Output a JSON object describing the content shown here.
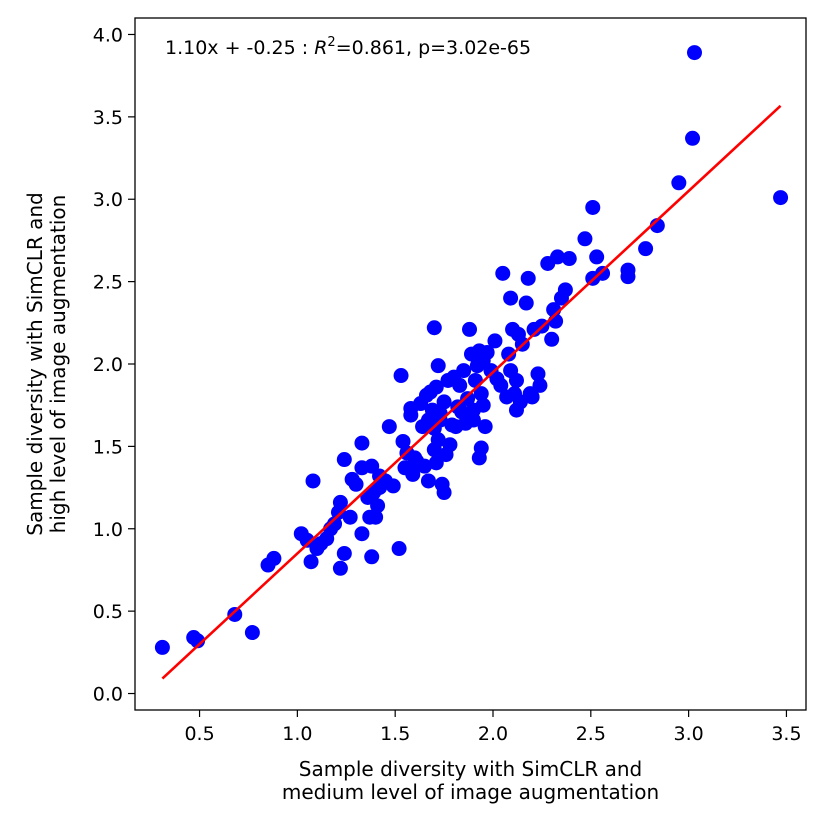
{
  "chart_data": {
    "type": "scatter",
    "title": "",
    "xlabel": [
      "Sample diversity with SimCLR and",
      "medium level of image augmentation"
    ],
    "ylabel": [
      "Sample diversity with SimCLR and",
      "high level of image augmentation"
    ],
    "xlim": [
      0.17,
      3.6
    ],
    "ylim": [
      -0.1,
      4.1
    ],
    "xticks": [
      0.5,
      1.0,
      1.5,
      2.0,
      2.5,
      3.0,
      3.5
    ],
    "xtick_labels": [
      "0.5",
      "1.0",
      "1.5",
      "2.0",
      "2.5",
      "3.0",
      "3.5"
    ],
    "yticks": [
      0.0,
      0.5,
      1.0,
      1.5,
      2.0,
      2.5,
      3.0,
      3.5,
      4.0
    ],
    "ytick_labels": [
      "0.0",
      "0.5",
      "1.0",
      "1.5",
      "2.0",
      "2.5",
      "3.0",
      "3.5",
      "4.0"
    ],
    "grid": false,
    "annotation": {
      "prefix": "1.10x + -0.25 : ",
      "r": "R",
      "sup": "2",
      "suffix": "=0.861, p=3.02e-65"
    },
    "fit_line": {
      "slope": 1.1,
      "intercept": -0.25,
      "x_start": 0.31,
      "x_end": 3.47,
      "color": "#ff0000"
    },
    "series": [
      {
        "color": "#0000ff",
        "points": [
          [
            0.31,
            0.28
          ],
          [
            0.47,
            0.34
          ],
          [
            0.49,
            0.32
          ],
          [
            0.68,
            0.48
          ],
          [
            0.77,
            0.37
          ],
          [
            0.85,
            0.78
          ],
          [
            0.88,
            0.82
          ],
          [
            1.02,
            0.97
          ],
          [
            1.05,
            0.93
          ],
          [
            1.07,
            0.8
          ],
          [
            1.08,
            1.29
          ],
          [
            1.1,
            0.88
          ],
          [
            1.12,
            0.91
          ],
          [
            1.15,
            0.94
          ],
          [
            1.17,
            1.0
          ],
          [
            1.19,
            1.03
          ],
          [
            1.21,
            1.1
          ],
          [
            1.22,
            1.16
          ],
          [
            1.22,
            0.76
          ],
          [
            1.24,
            1.42
          ],
          [
            1.24,
            0.85
          ],
          [
            1.27,
            1.07
          ],
          [
            1.28,
            1.3
          ],
          [
            1.3,
            1.27
          ],
          [
            1.33,
            0.97
          ],
          [
            1.33,
            1.52
          ],
          [
            1.33,
            1.37
          ],
          [
            1.36,
            1.19
          ],
          [
            1.37,
            1.07
          ],
          [
            1.38,
            1.38
          ],
          [
            1.38,
            0.83
          ],
          [
            1.39,
            1.22
          ],
          [
            1.4,
            1.07
          ],
          [
            1.41,
            1.14
          ],
          [
            1.42,
            1.25
          ],
          [
            1.42,
            1.32
          ],
          [
            1.45,
            1.29
          ],
          [
            1.47,
            1.62
          ],
          [
            1.49,
            1.26
          ],
          [
            1.52,
            0.88
          ],
          [
            1.53,
            1.93
          ],
          [
            1.54,
            1.53
          ],
          [
            1.55,
            1.37
          ],
          [
            1.56,
            1.46
          ],
          [
            1.58,
            1.73
          ],
          [
            1.58,
            1.69
          ],
          [
            1.59,
            1.33
          ],
          [
            1.6,
            1.43
          ],
          [
            1.61,
            1.41
          ],
          [
            1.63,
            1.76
          ],
          [
            1.64,
            1.62
          ],
          [
            1.65,
            1.38
          ],
          [
            1.66,
            1.81
          ],
          [
            1.67,
            1.29
          ],
          [
            1.67,
            1.66
          ],
          [
            1.68,
            1.83
          ],
          [
            1.69,
            1.72
          ],
          [
            1.7,
            1.61
          ],
          [
            1.7,
            1.48
          ],
          [
            1.7,
            2.22
          ],
          [
            1.71,
            1.4
          ],
          [
            1.71,
            1.86
          ],
          [
            1.72,
            1.54
          ],
          [
            1.72,
            1.99
          ],
          [
            1.73,
            1.66
          ],
          [
            1.73,
            1.7
          ],
          [
            1.74,
            1.27
          ],
          [
            1.75,
            1.22
          ],
          [
            1.75,
            1.77
          ],
          [
            1.76,
            1.45
          ],
          [
            1.77,
            1.9
          ],
          [
            1.78,
            1.51
          ],
          [
            1.79,
            1.63
          ],
          [
            1.8,
            1.92
          ],
          [
            1.81,
            1.62
          ],
          [
            1.82,
            1.74
          ],
          [
            1.83,
            1.87
          ],
          [
            1.84,
            1.71
          ],
          [
            1.85,
            1.96
          ],
          [
            1.86,
            1.64
          ],
          [
            1.87,
            1.79
          ],
          [
            1.88,
            2.21
          ],
          [
            1.89,
            2.06
          ],
          [
            1.9,
            1.66
          ],
          [
            1.9,
            1.72
          ],
          [
            1.91,
            1.9
          ],
          [
            1.92,
            1.99
          ],
          [
            1.93,
            1.43
          ],
          [
            1.93,
            2.08
          ],
          [
            1.94,
            1.49
          ],
          [
            1.94,
            1.82
          ],
          [
            1.95,
            2.02
          ],
          [
            1.95,
            1.75
          ],
          [
            1.96,
            1.62
          ],
          [
            1.97,
            2.07
          ],
          [
            1.99,
            1.96
          ],
          [
            2.01,
            2.14
          ],
          [
            2.02,
            1.91
          ],
          [
            2.04,
            1.87
          ],
          [
            2.05,
            2.55
          ],
          [
            2.07,
            1.8
          ],
          [
            2.08,
            2.06
          ],
          [
            2.09,
            2.4
          ],
          [
            2.09,
            1.96
          ],
          [
            2.1,
            2.21
          ],
          [
            2.11,
            1.82
          ],
          [
            2.12,
            1.72
          ],
          [
            2.12,
            1.9
          ],
          [
            2.13,
            2.18
          ],
          [
            2.14,
            1.77
          ],
          [
            2.15,
            2.12
          ],
          [
            2.17,
            2.37
          ],
          [
            2.18,
            2.52
          ],
          [
            2.19,
            1.82
          ],
          [
            2.2,
            1.8
          ],
          [
            2.21,
            2.21
          ],
          [
            2.23,
            1.94
          ],
          [
            2.24,
            1.87
          ],
          [
            2.25,
            2.23
          ],
          [
            2.28,
            2.61
          ],
          [
            2.3,
            2.15
          ],
          [
            2.31,
            2.33
          ],
          [
            2.32,
            2.26
          ],
          [
            2.33,
            2.65
          ],
          [
            2.35,
            2.4
          ],
          [
            2.37,
            2.45
          ],
          [
            2.39,
            2.64
          ],
          [
            2.47,
            2.76
          ],
          [
            2.51,
            2.95
          ],
          [
            2.51,
            2.52
          ],
          [
            2.53,
            2.65
          ],
          [
            2.56,
            2.55
          ],
          [
            2.69,
            2.53
          ],
          [
            2.69,
            2.57
          ],
          [
            2.78,
            2.7
          ],
          [
            2.84,
            2.84
          ],
          [
            2.95,
            3.1
          ],
          [
            3.02,
            3.37
          ],
          [
            3.03,
            3.89
          ],
          [
            3.47,
            3.01
          ]
        ]
      }
    ]
  }
}
